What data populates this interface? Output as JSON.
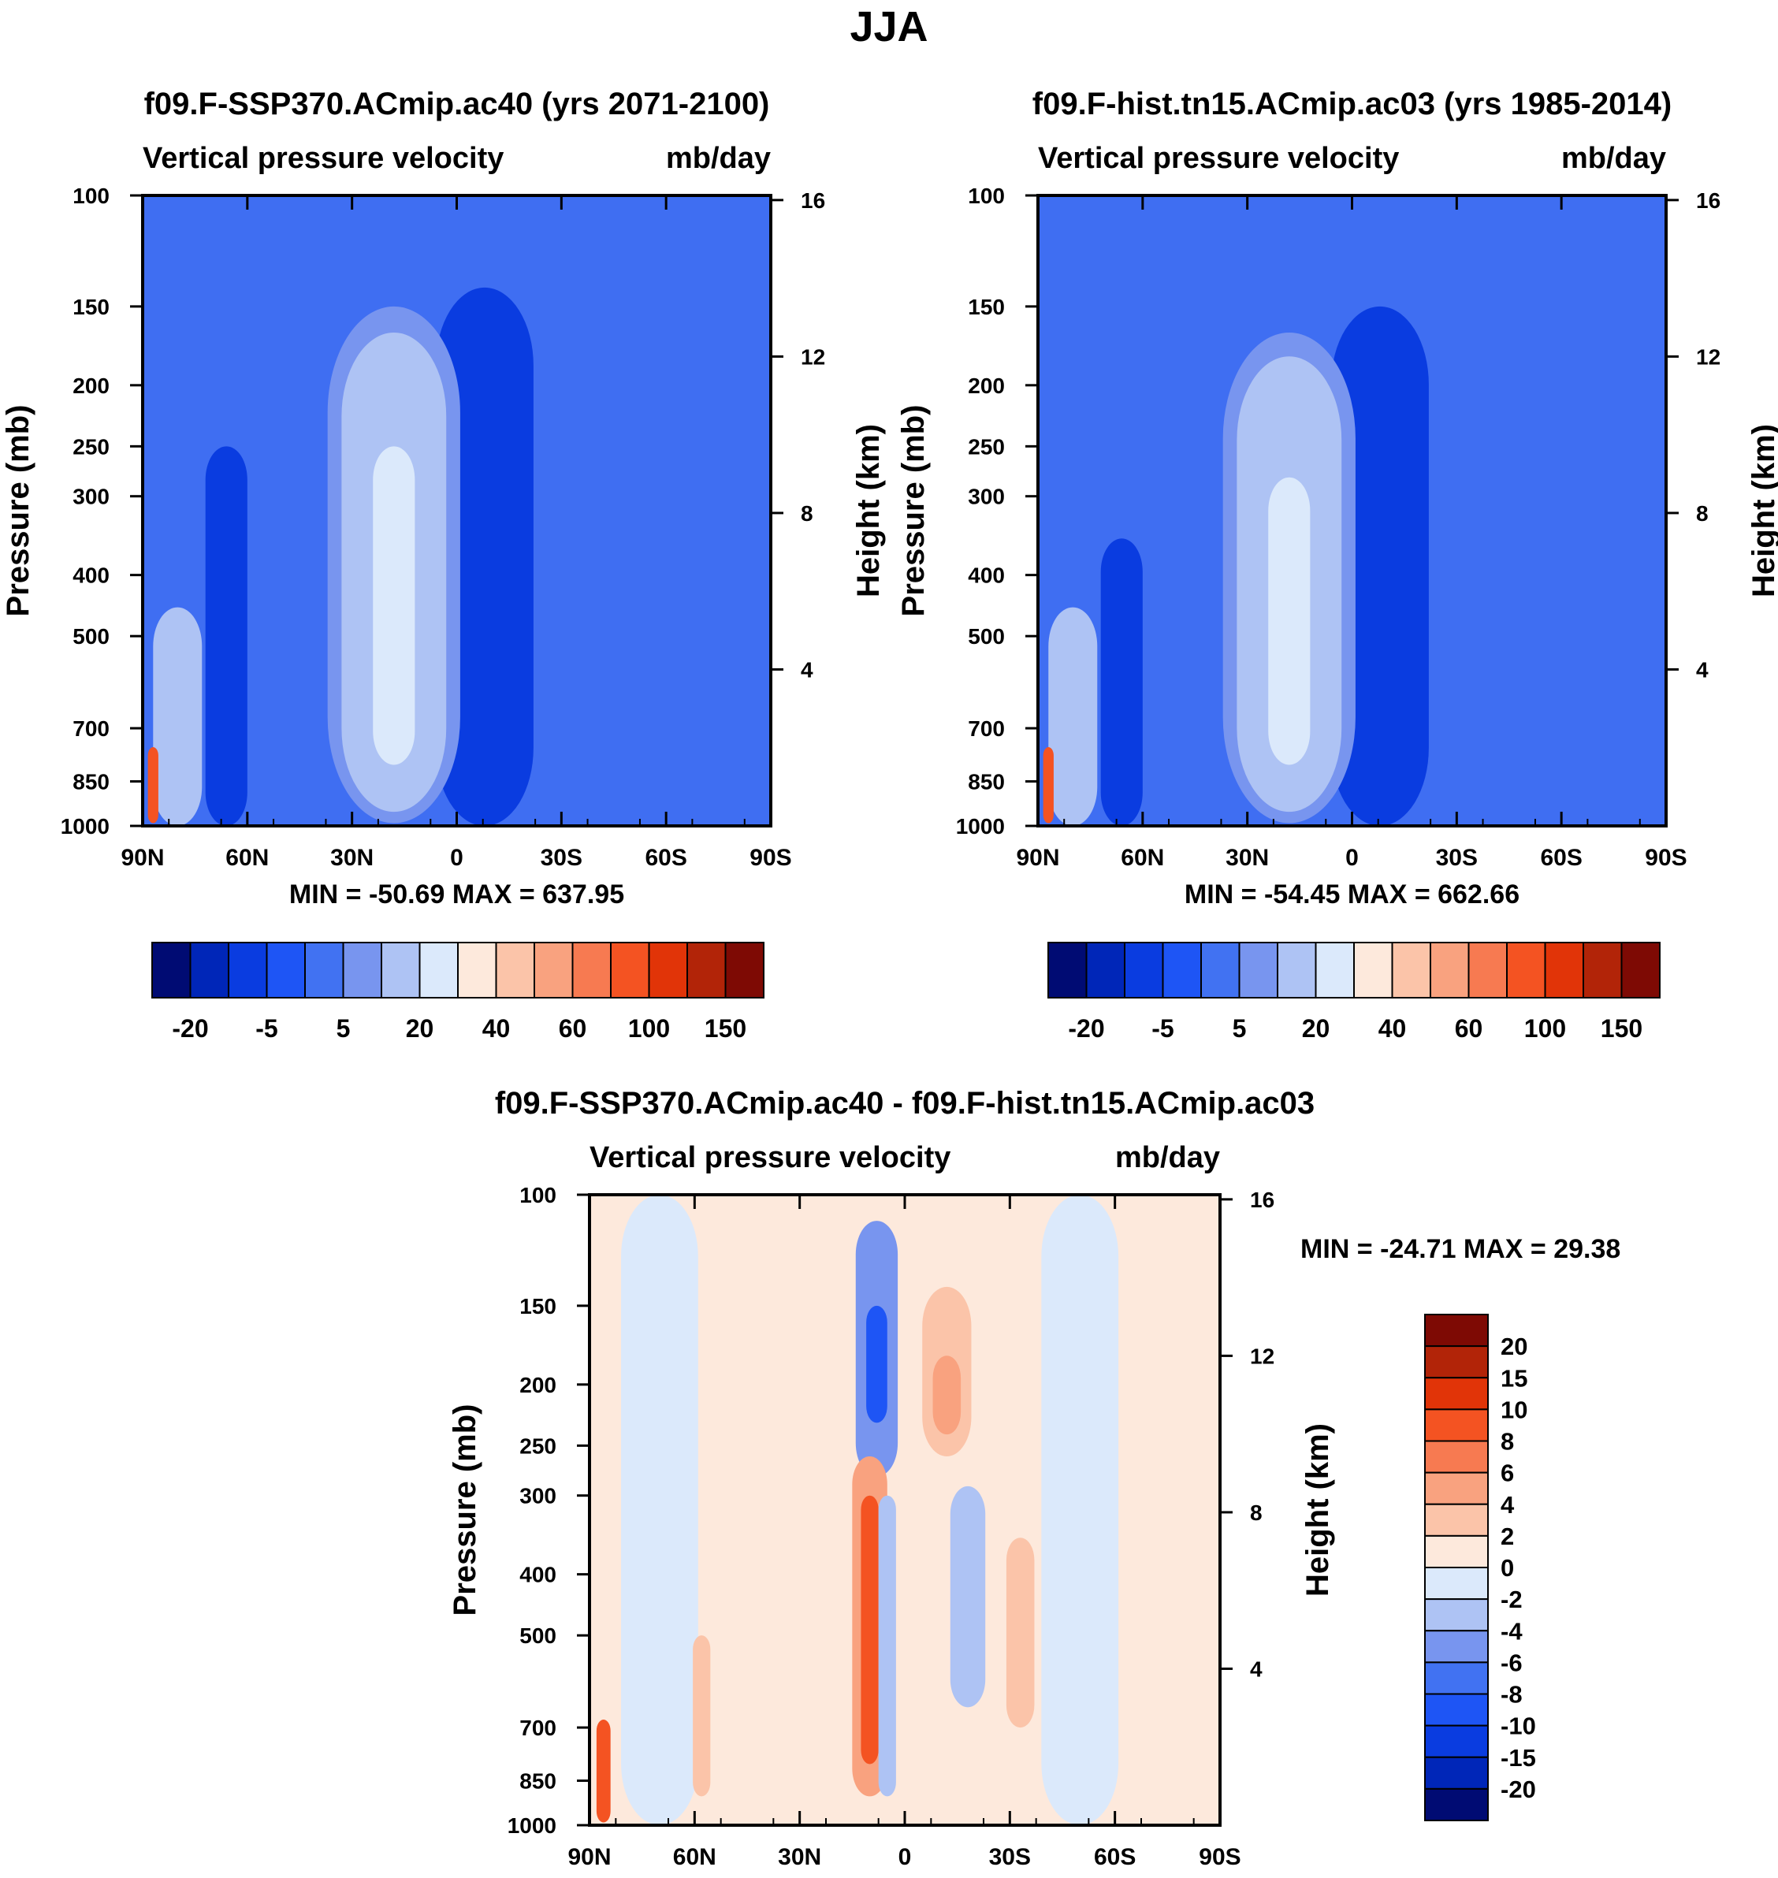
{
  "page_title": "JJA",
  "colors": {
    "seq_fill": [
      "#000b73",
      "#0026b8",
      "#0a3ce0",
      "#1e55f5",
      "#4172f2",
      "#7895ef",
      "#aec3f4",
      "#dbe9fb",
      "#fde9dc",
      "#fbc4a9",
      "#f9a27f",
      "#f77a51",
      "#f45322",
      "#e13408",
      "#b22408",
      "#7e0a04"
    ],
    "diff_fill": [
      "#000b73",
      "#0026b8",
      "#0a3ce0",
      "#1e55f5",
      "#4172f2",
      "#7895ef",
      "#aec3f4",
      "#dbe9fb",
      "#fde9dc",
      "#fbc4a9",
      "#f9a27f",
      "#f77a51",
      "#f45322",
      "#e13408",
      "#b22408",
      "#7e0a04"
    ],
    "base_future": "#3f6ef2",
    "base_hist": "#3f6ef2",
    "base_diff": "#fde9dc"
  },
  "chart_data": [
    {
      "type": "heatmap",
      "title": "f09.F-SSP370.ACmip.ac40 (yrs 2071-2100)",
      "var_label": "Vertical pressure velocity",
      "units": "mb/day",
      "ylabel": "Pressure (mb)",
      "y2label": "Height (km)",
      "xticks": [
        "90N",
        "60N",
        "30N",
        "0",
        "30S",
        "60S",
        "90S"
      ],
      "yticks": [
        100,
        150,
        200,
        250,
        300,
        400,
        500,
        700,
        850,
        1000
      ],
      "y2ticks": [
        16,
        12,
        8,
        4
      ],
      "ylim": [
        1000,
        100
      ],
      "xlim": [
        90,
        -90
      ],
      "minmax": "MIN = -50.69  MAX = 637.95",
      "colorbar": {
        "orientation": "horizontal",
        "labels": [
          "-20",
          "-5",
          "5",
          "20",
          "40",
          "60",
          "100",
          "150"
        ]
      },
      "features": [
        {
          "lat": -8,
          "p_top": 160,
          "p_bot": 980,
          "halfwidth": 9,
          "color": 1
        },
        {
          "lat": -8,
          "p_top": 140,
          "p_bot": 1000,
          "halfwidth": 14,
          "color": 2
        },
        {
          "lat": 18,
          "p_top": 150,
          "p_bot": 990,
          "halfwidth": 19,
          "color": 5
        },
        {
          "lat": 18,
          "p_top": 165,
          "p_bot": 950,
          "halfwidth": 15,
          "color": 6
        },
        {
          "lat": 18,
          "p_top": 250,
          "p_bot": 800,
          "halfwidth": 6,
          "color": 7
        },
        {
          "lat": 66,
          "p_top": 250,
          "p_bot": 1000,
          "halfwidth": 6,
          "color": 2
        },
        {
          "lat": 80,
          "p_top": 450,
          "p_bot": 1000,
          "halfwidth": 7,
          "color": 6
        },
        {
          "lat": 87,
          "p_top": 750,
          "p_bot": 990,
          "halfwidth": 1.5,
          "color": 12
        }
      ]
    },
    {
      "type": "heatmap",
      "title": "f09.F-hist.tn15.ACmip.ac03 (yrs 1985-2014)",
      "var_label": "Vertical pressure velocity",
      "units": "mb/day",
      "ylabel": "Pressure (mb)",
      "y2label": "Height (km)",
      "xticks": [
        "90N",
        "60N",
        "30N",
        "0",
        "30S",
        "60S",
        "90S"
      ],
      "yticks": [
        100,
        150,
        200,
        250,
        300,
        400,
        500,
        700,
        850,
        1000
      ],
      "y2ticks": [
        16,
        12,
        8,
        4
      ],
      "ylim": [
        1000,
        100
      ],
      "xlim": [
        90,
        -90
      ],
      "minmax": "MIN = -54.45  MAX = 662.66",
      "colorbar": {
        "orientation": "horizontal",
        "labels": [
          "-20",
          "-5",
          "5",
          "20",
          "40",
          "60",
          "100",
          "150"
        ]
      },
      "features": [
        {
          "lat": -8,
          "p_top": 180,
          "p_bot": 980,
          "halfwidth": 9,
          "color": 1
        },
        {
          "lat": -8,
          "p_top": 150,
          "p_bot": 1000,
          "halfwidth": 14,
          "color": 2
        },
        {
          "lat": 18,
          "p_top": 165,
          "p_bot": 990,
          "halfwidth": 19,
          "color": 5
        },
        {
          "lat": 18,
          "p_top": 180,
          "p_bot": 950,
          "halfwidth": 15,
          "color": 6
        },
        {
          "lat": 18,
          "p_top": 280,
          "p_bot": 800,
          "halfwidth": 6,
          "color": 7
        },
        {
          "lat": 66,
          "p_top": 350,
          "p_bot": 1000,
          "halfwidth": 6,
          "color": 2
        },
        {
          "lat": 80,
          "p_top": 450,
          "p_bot": 1000,
          "halfwidth": 7,
          "color": 6
        },
        {
          "lat": 87,
          "p_top": 750,
          "p_bot": 990,
          "halfwidth": 1.5,
          "color": 12
        }
      ]
    },
    {
      "type": "heatmap",
      "title": "f09.F-SSP370.ACmip.ac40 - f09.F-hist.tn15.ACmip.ac03",
      "var_label": "Vertical pressure velocity",
      "units": "mb/day",
      "ylabel": "Pressure (mb)",
      "y2label": "Height (km)",
      "xticks": [
        "90N",
        "60N",
        "30N",
        "0",
        "30S",
        "60S",
        "90S"
      ],
      "yticks": [
        100,
        150,
        200,
        250,
        300,
        400,
        500,
        700,
        850,
        1000
      ],
      "y2ticks": [
        16,
        12,
        8,
        4
      ],
      "ylim": [
        1000,
        100
      ],
      "xlim": [
        90,
        -90
      ],
      "minmax": "MIN = -24.71  MAX =  29.38",
      "colorbar": {
        "orientation": "vertical",
        "labels": [
          "20",
          "15",
          "10",
          "8",
          "6",
          "4",
          "2",
          "0",
          "-2",
          "-4",
          "-6",
          "-8",
          "-10",
          "-15",
          "-20"
        ]
      },
      "features": [
        {
          "lat": 70,
          "p_top": 100,
          "p_bot": 1000,
          "halfwidth": 11,
          "color": 7
        },
        {
          "lat": -50,
          "p_top": 100,
          "p_bot": 1000,
          "halfwidth": 11,
          "color": 7
        },
        {
          "lat": 8,
          "p_top": 110,
          "p_bot": 280,
          "halfwidth": 6,
          "color": 5
        },
        {
          "lat": 8,
          "p_top": 150,
          "p_bot": 230,
          "halfwidth": 3,
          "color": 3
        },
        {
          "lat": -12,
          "p_top": 140,
          "p_bot": 260,
          "halfwidth": 7,
          "color": 9
        },
        {
          "lat": -12,
          "p_top": 180,
          "p_bot": 240,
          "halfwidth": 4,
          "color": 10
        },
        {
          "lat": 10,
          "p_top": 260,
          "p_bot": 900,
          "halfwidth": 5,
          "color": 10
        },
        {
          "lat": 10,
          "p_top": 300,
          "p_bot": 800,
          "halfwidth": 2.5,
          "color": 12
        },
        {
          "lat": 5,
          "p_top": 300,
          "p_bot": 900,
          "halfwidth": 2.5,
          "color": 6
        },
        {
          "lat": -18,
          "p_top": 290,
          "p_bot": 650,
          "halfwidth": 5,
          "color": 6
        },
        {
          "lat": -33,
          "p_top": 350,
          "p_bot": 700,
          "halfwidth": 4,
          "color": 9
        },
        {
          "lat": 58,
          "p_top": 500,
          "p_bot": 900,
          "halfwidth": 2.5,
          "color": 9
        },
        {
          "lat": 86,
          "p_top": 680,
          "p_bot": 990,
          "halfwidth": 2,
          "color": 12
        }
      ]
    }
  ]
}
